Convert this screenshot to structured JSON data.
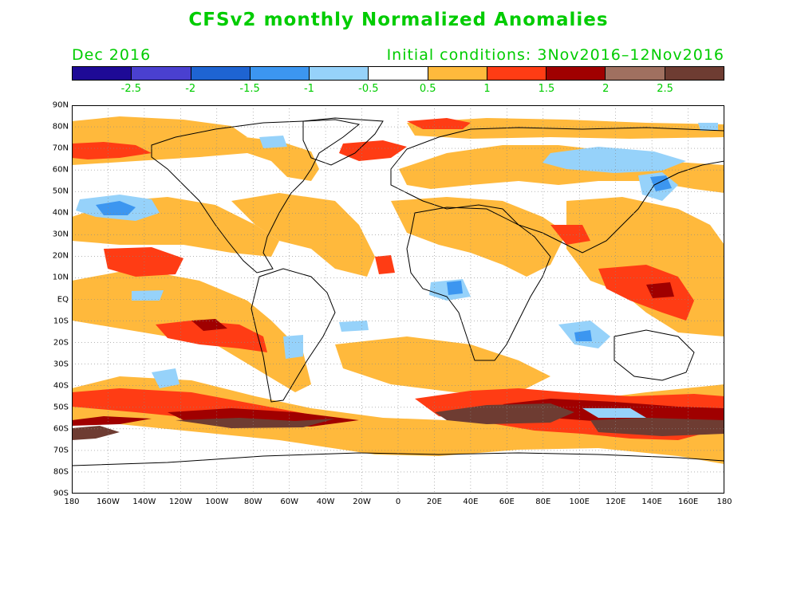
{
  "title": "CFSv2 monthly Normalized Anomalies",
  "forecast_month": "Dec 2016",
  "initial_conditions": "Initial conditions: 3Nov2016–12Nov2016",
  "text_color": "#00cc00",
  "colorbar": {
    "colors": [
      "#1e0a96",
      "#4a40d0",
      "#1e64d2",
      "#3c96f0",
      "#96d2fa",
      "#ffffff",
      "#ffb93c",
      "#ff3c14",
      "#a00000",
      "#a07060",
      "#6e3c32"
    ],
    "labels": [
      "-2.5",
      "-2",
      "-1.5",
      "-1",
      "-0.5",
      "0.5",
      "1",
      "1.5",
      "2",
      "2.5"
    ]
  },
  "lat_labels": [
    "90N",
    "80N",
    "70N",
    "60N",
    "50N",
    "40N",
    "30N",
    "20N",
    "10N",
    "EQ",
    "10S",
    "20S",
    "30S",
    "40S",
    "50S",
    "60S",
    "70S",
    "80S",
    "90S"
  ],
  "lon_labels": [
    "180",
    "160W",
    "140W",
    "120W",
    "100W",
    "80W",
    "60W",
    "40W",
    "20W",
    "0",
    "20E",
    "40E",
    "60E",
    "80E",
    "100E",
    "120E",
    "140E",
    "160E",
    "180"
  ]
}
